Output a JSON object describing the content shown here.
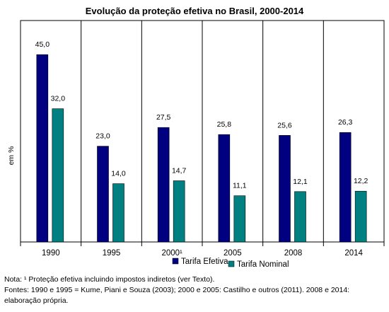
{
  "chart_data": {
    "type": "bar",
    "title": "Evolução da proteção efetiva no Brasil, 2000-2014",
    "ylabel": "em %",
    "xlabel": "",
    "categories": [
      "1990",
      "1995",
      "2000¹",
      "2005",
      "2008",
      "2014"
    ],
    "series": [
      {
        "name": "Tarifa Efetiva",
        "color": "#000080",
        "values": [
          45.0,
          23.0,
          27.5,
          25.8,
          25.6,
          26.3
        ],
        "labels": [
          "45,0",
          "23,0",
          "27,5",
          "25,8",
          "25,6",
          "26,3"
        ]
      },
      {
        "name": "Tarifa Nominal",
        "color": "#008080",
        "values": [
          32.0,
          14.0,
          14.7,
          11.1,
          12.1,
          12.2
        ],
        "labels": [
          "32,0",
          "14,0",
          "14,7",
          "11,1",
          "12,1",
          "12,2"
        ]
      }
    ],
    "ylim": [
      0,
      50
    ],
    "grid": "vertical separators",
    "legend": "bottom-center"
  },
  "notes": {
    "line1": "Nota: ¹ Proteção efetiva incluindo impostos indiretos (ver Texto).",
    "line2": "Fontes: 1990 e 1995 = Kume, Piani e Souza (2003); 2000 e 2005: Castilho e outros (2011). 2008 e 2014: elaboração própria."
  }
}
